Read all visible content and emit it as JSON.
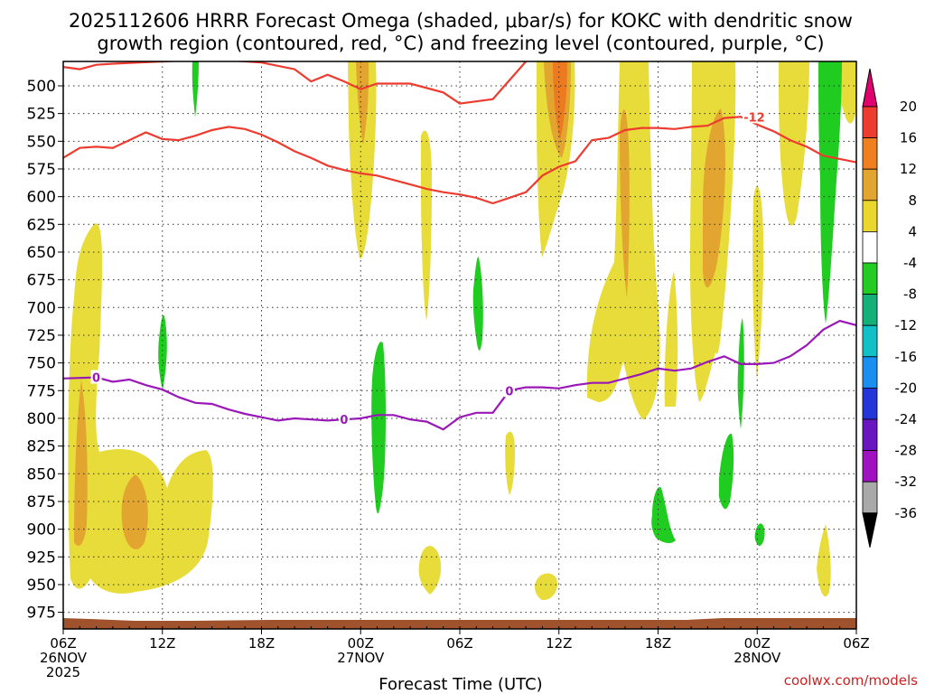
{
  "chart_data": {
    "type": "heatmap",
    "title_lines": [
      "2025112606 HRRR Forecast Omega (shaded, μbar/s) for KOKC with dendritic snow",
      "growth region (contoured, red, °C) and freezing level (contoured, purple, °C)"
    ],
    "xlabel": "Forecast Time (UTC)",
    "credit": "coolwx.com/models",
    "x_hours_range": [
      0,
      48
    ],
    "y_pressure_range": [
      478,
      990
    ],
    "y_ticks": [
      500,
      525,
      550,
      575,
      600,
      625,
      650,
      675,
      700,
      725,
      750,
      775,
      800,
      825,
      850,
      875,
      900,
      925,
      950,
      975
    ],
    "x_ticks": [
      {
        "hour": 0,
        "lines": [
          "06Z",
          "26NOV",
          "2025"
        ]
      },
      {
        "hour": 6,
        "lines": [
          "12Z"
        ]
      },
      {
        "hour": 12,
        "lines": [
          "18Z"
        ]
      },
      {
        "hour": 18,
        "lines": [
          "00Z",
          "27NOV"
        ]
      },
      {
        "hour": 24,
        "lines": [
          "06Z"
        ]
      },
      {
        "hour": 30,
        "lines": [
          "12Z"
        ]
      },
      {
        "hour": 36,
        "lines": [
          "18Z"
        ]
      },
      {
        "hour": 42,
        "lines": [
          "00Z",
          "28NOV"
        ]
      },
      {
        "hour": 48,
        "lines": [
          "06Z"
        ]
      }
    ],
    "colorbar": {
      "labels": [
        "20",
        "16",
        "12",
        "8",
        "4",
        "-4",
        "-8",
        "-12",
        "-16",
        "-20",
        "-24",
        "-28",
        "-32",
        "-36"
      ],
      "colors": [
        "#e0006e",
        "#ee3b30",
        "#f07f22",
        "#e2a630",
        "#ead72e",
        "#ffffff",
        "#22cc22",
        "#13b07a",
        "#12c0c8",
        "#1a8ff0",
        "#2336d8",
        "#6a16c0",
        "#a012c0",
        "#a9a9a9",
        "#000000"
      ]
    },
    "shading_colors": {
      "light": "#e8dc3a",
      "med": "#e2a630",
      "dark": "#ee7a20",
      "green": "#1fcc1f"
    },
    "contours": [
      {
        "color": "#ee3b30",
        "label": "-12",
        "points": [
          [
            0,
            483
          ],
          [
            1,
            485
          ],
          [
            2,
            481
          ],
          [
            3,
            480
          ],
          [
            6,
            478
          ],
          [
            9,
            476
          ],
          [
            12,
            479
          ],
          [
            14,
            485
          ],
          [
            15,
            496
          ],
          [
            16,
            490
          ],
          [
            17,
            496
          ],
          [
            18,
            503
          ],
          [
            19,
            498
          ],
          [
            21,
            498
          ],
          [
            23,
            506
          ],
          [
            24,
            516
          ],
          [
            25,
            514
          ],
          [
            26,
            512
          ],
          [
            27,
            495
          ],
          [
            28,
            478
          ]
        ]
      },
      {
        "color": "#ee3b30",
        "label": "",
        "points": [
          [
            0,
            565
          ],
          [
            1,
            556
          ],
          [
            2,
            555
          ],
          [
            3,
            556
          ],
          [
            4,
            549
          ],
          [
            5,
            542
          ],
          [
            6,
            548
          ],
          [
            7,
            549
          ],
          [
            8,
            545
          ],
          [
            9,
            540
          ],
          [
            10,
            537
          ],
          [
            11,
            539
          ],
          [
            12,
            544
          ],
          [
            13,
            551
          ],
          [
            14,
            559
          ],
          [
            15,
            565
          ],
          [
            16,
            572
          ],
          [
            17,
            576
          ],
          [
            18,
            579
          ],
          [
            19,
            581
          ],
          [
            20,
            585
          ],
          [
            21,
            589
          ],
          [
            22,
            593
          ],
          [
            23,
            596
          ],
          [
            24,
            598
          ],
          [
            25,
            601
          ],
          [
            26,
            606
          ],
          [
            27,
            601
          ],
          [
            28,
            596
          ],
          [
            29,
            581
          ],
          [
            30,
            573
          ],
          [
            31,
            568
          ],
          [
            32,
            549
          ],
          [
            33,
            547
          ],
          [
            34,
            540
          ],
          [
            35,
            538
          ],
          [
            36,
            538
          ],
          [
            37,
            539
          ],
          [
            38,
            537
          ],
          [
            39,
            536
          ],
          [
            40,
            529
          ],
          [
            41,
            528
          ],
          [
            42,
            535
          ],
          [
            43,
            541
          ],
          [
            44,
            549
          ],
          [
            45,
            555
          ],
          [
            46,
            563
          ],
          [
            47,
            566
          ],
          [
            48,
            569
          ]
        ]
      },
      {
        "color": "#9a17b8",
        "label": "0",
        "points": [
          [
            0,
            764
          ],
          [
            2,
            763
          ],
          [
            3,
            767
          ],
          [
            4,
            765
          ],
          [
            5,
            770
          ],
          [
            6,
            774
          ],
          [
            7,
            781
          ],
          [
            8,
            786
          ],
          [
            9,
            787
          ],
          [
            10,
            792
          ],
          [
            11,
            796
          ],
          [
            12,
            799
          ],
          [
            13,
            802
          ],
          [
            14,
            800
          ],
          [
            15,
            801
          ],
          [
            16,
            802
          ],
          [
            17,
            801
          ],
          [
            18,
            800
          ],
          [
            19,
            797
          ],
          [
            20,
            797
          ],
          [
            21,
            801
          ],
          [
            22,
            803
          ],
          [
            23,
            810
          ],
          [
            24,
            799
          ],
          [
            25,
            795
          ],
          [
            26,
            795
          ],
          [
            27,
            775
          ],
          [
            28,
            772
          ],
          [
            29,
            772
          ],
          [
            30,
            773
          ],
          [
            31,
            770
          ],
          [
            32,
            768
          ],
          [
            33,
            768
          ],
          [
            34,
            764
          ],
          [
            35,
            760
          ],
          [
            36,
            755
          ],
          [
            37,
            757
          ],
          [
            38,
            755
          ],
          [
            39,
            749
          ],
          [
            40,
            744
          ],
          [
            41,
            751
          ],
          [
            42,
            751
          ],
          [
            43,
            750
          ],
          [
            44,
            744
          ],
          [
            45,
            734
          ],
          [
            46,
            720
          ],
          [
            47,
            712
          ],
          [
            48,
            716
          ]
        ]
      }
    ]
  }
}
